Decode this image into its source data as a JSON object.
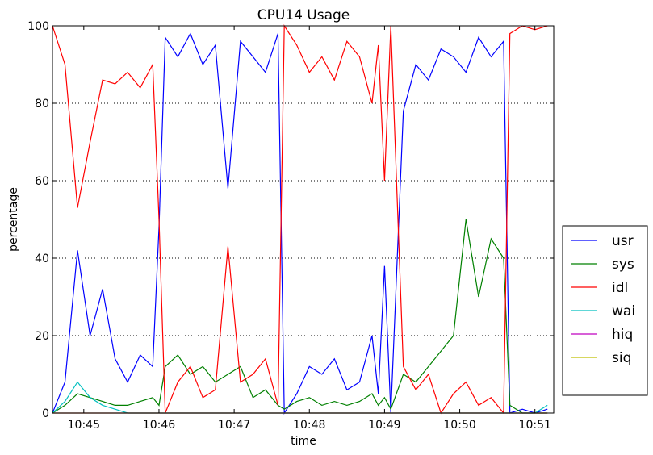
{
  "chart_data": {
    "type": "line",
    "title": "CPU14 Usage",
    "xlabel": "time",
    "ylabel": "percentage",
    "ylim": [
      0,
      100
    ],
    "xlim": [
      "10:44:35",
      "10:51:15"
    ],
    "xticks": [
      "10:45",
      "10:46",
      "10:47",
      "10:48",
      "10:49",
      "10:50",
      "10:51"
    ],
    "yticks": [
      0,
      20,
      40,
      60,
      80,
      100
    ],
    "grid": "horizontal dotted",
    "legend_position": "outside-right",
    "x": [
      "10:44:35",
      "10:44:45",
      "10:44:55",
      "10:45:05",
      "10:45:15",
      "10:45:25",
      "10:45:35",
      "10:45:45",
      "10:45:55",
      "10:46:00",
      "10:46:05",
      "10:46:15",
      "10:46:25",
      "10:46:35",
      "10:46:45",
      "10:46:55",
      "10:47:05",
      "10:47:15",
      "10:47:25",
      "10:47:35",
      "10:47:40",
      "10:47:50",
      "10:48:00",
      "10:48:10",
      "10:48:20",
      "10:48:30",
      "10:48:40",
      "10:48:50",
      "10:48:55",
      "10:49:00",
      "10:49:05",
      "10:49:15",
      "10:49:25",
      "10:49:35",
      "10:49:45",
      "10:49:55",
      "10:50:05",
      "10:50:15",
      "10:50:25",
      "10:50:35",
      "10:50:40",
      "10:50:50",
      "10:51:00",
      "10:51:10"
    ],
    "series": [
      {
        "name": "usr",
        "color": "#0000ff",
        "values": [
          0,
          8,
          42,
          20,
          32,
          14,
          8,
          15,
          12,
          48,
          97,
          92,
          98,
          90,
          95,
          58,
          96,
          92,
          88,
          98,
          0,
          5,
          12,
          10,
          14,
          6,
          8,
          20,
          5,
          38,
          0,
          78,
          90,
          86,
          94,
          92,
          88,
          97,
          92,
          96,
          0,
          1,
          0,
          1
        ]
      },
      {
        "name": "sys",
        "color": "#008000",
        "values": [
          0,
          2,
          5,
          4,
          3,
          2,
          2,
          3,
          4,
          2,
          12,
          15,
          10,
          12,
          8,
          10,
          12,
          4,
          6,
          2,
          1,
          3,
          4,
          2,
          3,
          2,
          3,
          5,
          2,
          4,
          1,
          10,
          8,
          12,
          16,
          20,
          50,
          30,
          45,
          40,
          2,
          0,
          0,
          0
        ]
      },
      {
        "name": "idl",
        "color": "#ff0000",
        "values": [
          100,
          90,
          53,
          70,
          86,
          85,
          88,
          84,
          90,
          50,
          0,
          8,
          12,
          4,
          6,
          43,
          8,
          10,
          14,
          2,
          100,
          95,
          88,
          92,
          86,
          96,
          92,
          80,
          95,
          60,
          100,
          12,
          6,
          10,
          0,
          5,
          8,
          2,
          4,
          0,
          98,
          100,
          99,
          100
        ]
      },
      {
        "name": "wai",
        "color": "#00bfbf",
        "values": [
          0,
          3,
          8,
          4,
          2,
          1,
          0,
          0,
          0,
          0,
          0,
          0,
          0,
          0,
          0,
          0,
          0,
          0,
          0,
          0,
          0,
          0,
          0,
          0,
          0,
          0,
          0,
          0,
          0,
          0,
          0,
          0,
          0,
          0,
          0,
          0,
          0,
          0,
          0,
          0,
          0,
          0,
          0,
          2
        ]
      },
      {
        "name": "hiq",
        "color": "#bf00bf",
        "values": [
          0,
          0,
          0,
          0,
          0,
          0,
          0,
          0,
          0,
          0,
          0,
          0,
          0,
          0,
          0,
          0,
          0,
          0,
          0,
          0,
          0,
          0,
          0,
          0,
          0,
          0,
          0,
          0,
          0,
          0,
          0,
          0,
          0,
          0,
          0,
          0,
          0,
          0,
          0,
          0,
          0,
          0,
          0,
          0
        ]
      },
      {
        "name": "siq",
        "color": "#bfbf00",
        "values": [
          0,
          0,
          0,
          0,
          0,
          0,
          0,
          0,
          0,
          0,
          0,
          0,
          0,
          0,
          0,
          0,
          0,
          0,
          0,
          0,
          0,
          0,
          0,
          0,
          0,
          0,
          0,
          0,
          0,
          0,
          0,
          0,
          0,
          0,
          0,
          0,
          0,
          0,
          0,
          0,
          0,
          0,
          0,
          0
        ]
      }
    ]
  }
}
